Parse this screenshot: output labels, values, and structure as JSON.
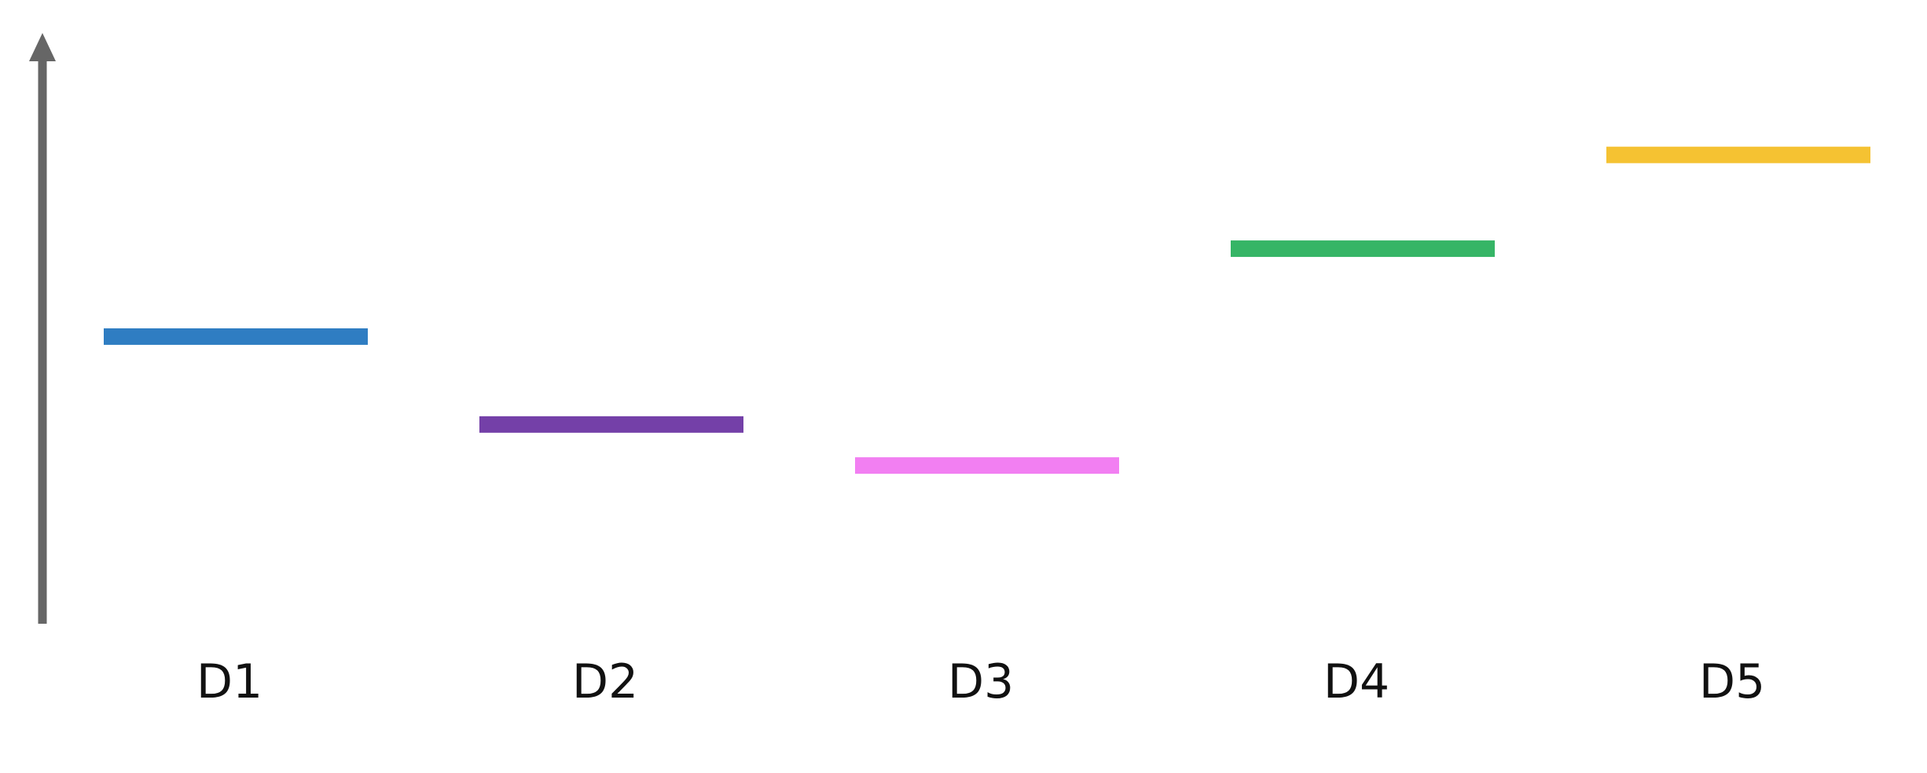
{
  "chart_data": {
    "type": "bar",
    "title": "",
    "xlabel": "",
    "ylabel": "",
    "categories": [
      "D1",
      "D2",
      "D3",
      "D4",
      "D5"
    ],
    "values": [
      0.49,
      0.34,
      0.27,
      0.64,
      0.8
    ],
    "ylim": [
      0,
      1
    ],
    "grid": false,
    "legend": "none",
    "axis_color": "#666666",
    "colors": [
      "#2f7dc2",
      "#7440a8",
      "#f27ff2",
      "#36b566",
      "#f5c232"
    ]
  }
}
